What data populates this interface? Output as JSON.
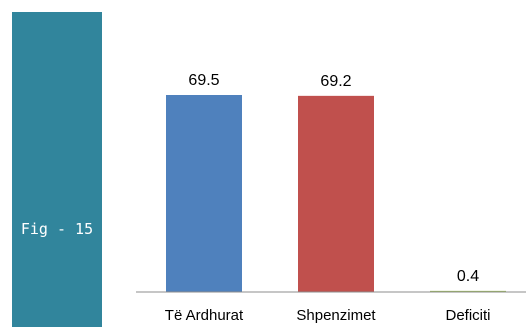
{
  "figure": {
    "label": "Fig - 15",
    "panel_color": "#31859c"
  },
  "chart_data": {
    "type": "bar",
    "categories": [
      "Të Ardhurat",
      "Shpenzimet",
      "Deficiti"
    ],
    "values": [
      69.5,
      69.2,
      0.4
    ],
    "value_labels": [
      "69.5",
      "69.2",
      "0.4"
    ],
    "colors": [
      "#4f81bd",
      "#c0504d",
      "#9bbb59"
    ],
    "title": "",
    "xlabel": "",
    "ylabel": "",
    "ylim": [
      0,
      69.5
    ],
    "grid": false,
    "legend": "none"
  }
}
